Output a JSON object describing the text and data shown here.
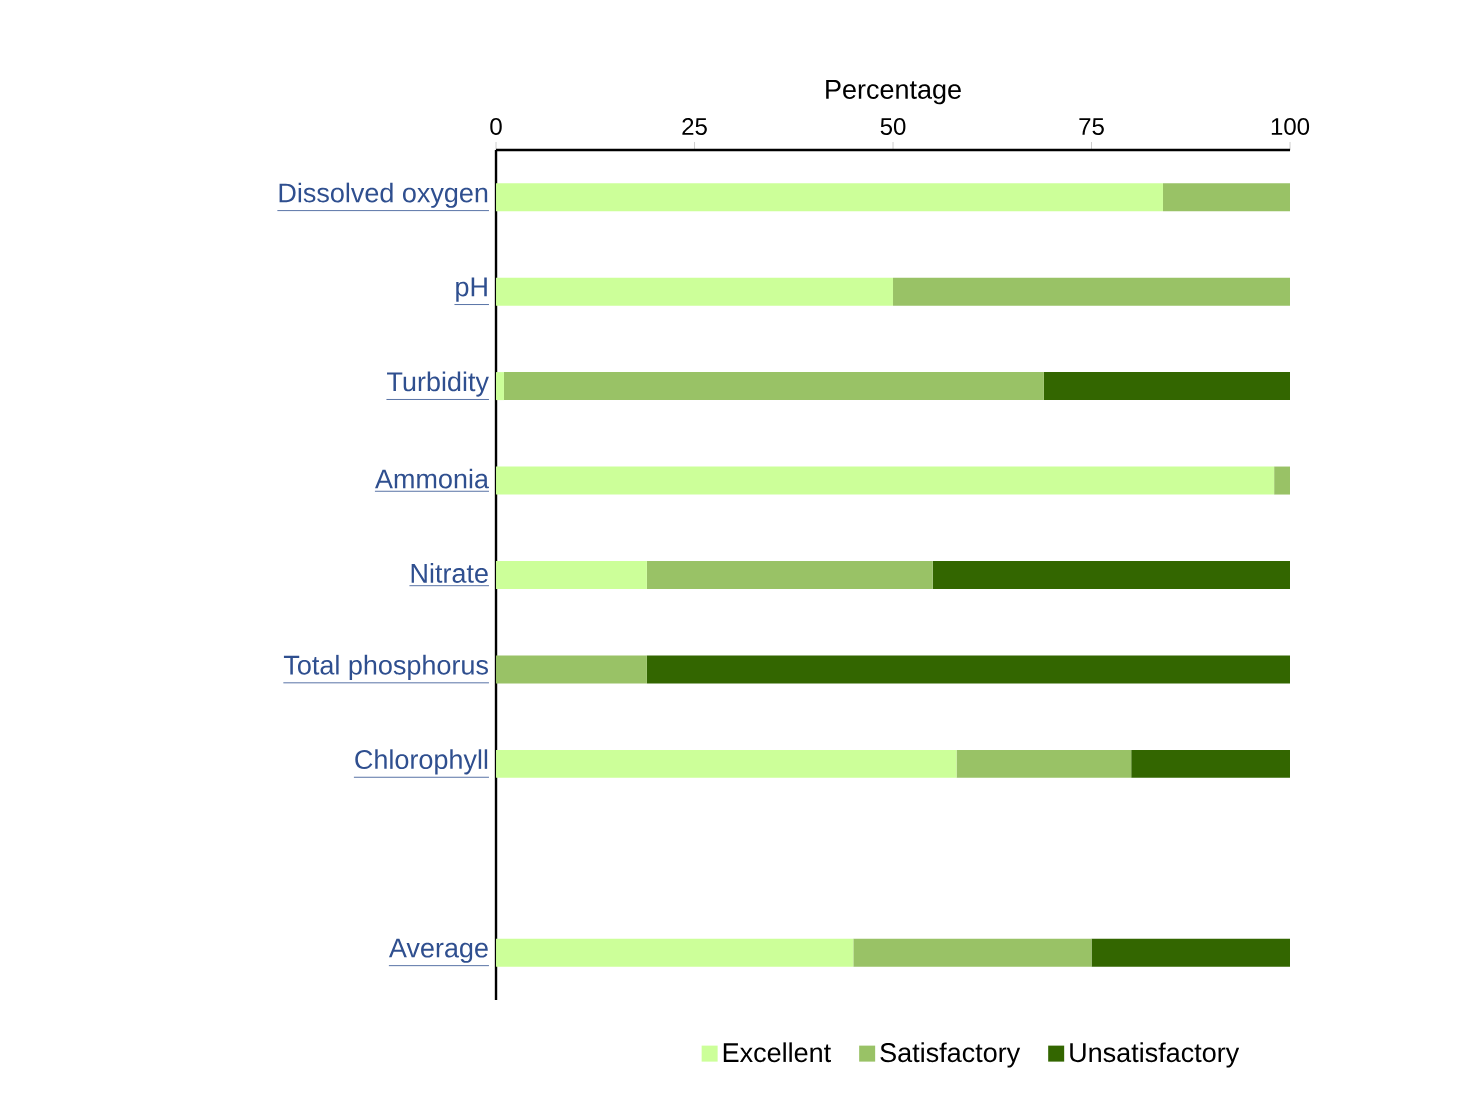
{
  "chart_data": {
    "type": "bar",
    "orientation": "horizontal",
    "stacked": true,
    "xlabel": "Percentage",
    "categories": [
      "Dissolved oxygen",
      "pH",
      "Turbidity",
      "Ammonia",
      "Nitrate",
      "Total phosphorus",
      "Chlorophyll",
      null,
      "Average"
    ],
    "series": [
      {
        "name": "Excellent",
        "color": "#ccff99",
        "values": [
          84,
          50,
          1,
          98,
          19,
          0,
          58,
          null,
          45
        ]
      },
      {
        "name": "Satisfactory",
        "color": "#99c266",
        "values": [
          16,
          50,
          68,
          2,
          36,
          19,
          22,
          null,
          30
        ]
      },
      {
        "name": "Unsatisfactory",
        "color": "#336600",
        "values": [
          0,
          0,
          31,
          0,
          45,
          81,
          20,
          null,
          25
        ]
      }
    ],
    "xlim": [
      0,
      100
    ],
    "xticks": [
      0,
      25,
      50,
      75,
      100
    ],
    "grid": false,
    "legend": "bottom"
  }
}
